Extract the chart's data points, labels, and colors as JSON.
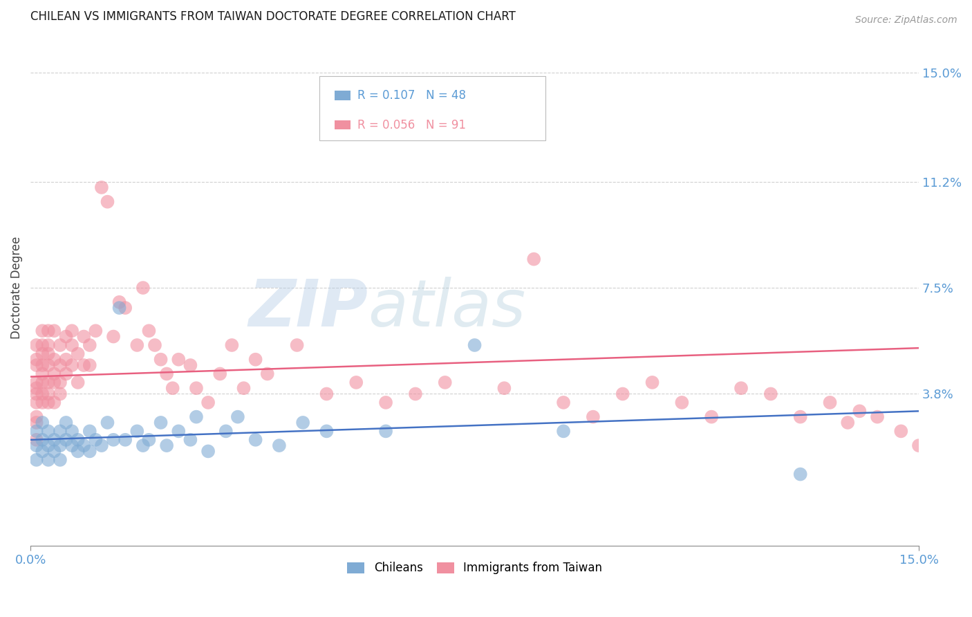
{
  "title": "CHILEAN VS IMMIGRANTS FROM TAIWAN DOCTORATE DEGREE CORRELATION CHART",
  "source": "Source: ZipAtlas.com",
  "ylabel": "Doctorate Degree",
  "ytick_labels": [
    "15.0%",
    "11.2%",
    "7.5%",
    "3.8%"
  ],
  "ytick_values": [
    0.15,
    0.112,
    0.075,
    0.038
  ],
  "xlim": [
    0.0,
    0.15
  ],
  "ylim": [
    -0.015,
    0.165
  ],
  "background_color": "#ffffff",
  "grid_color": "#d0d0d0",
  "legend_R1": "R = 0.107",
  "legend_N1": "N = 48",
  "legend_R2": "R = 0.056",
  "legend_N2": "N = 91",
  "chilean_color": "#7fabd4",
  "taiwan_color": "#f090a0",
  "line_blue": "#4472c4",
  "line_pink": "#e86080",
  "title_color": "#1a1a1a",
  "axis_label_color": "#5b9bd5",
  "watermark_zip": "ZIP",
  "watermark_atlas": "atlas",
  "chilean_x": [
    0.001,
    0.001,
    0.001,
    0.002,
    0.002,
    0.002,
    0.003,
    0.003,
    0.003,
    0.004,
    0.004,
    0.005,
    0.005,
    0.005,
    0.006,
    0.006,
    0.007,
    0.007,
    0.008,
    0.008,
    0.009,
    0.01,
    0.01,
    0.011,
    0.012,
    0.013,
    0.014,
    0.015,
    0.016,
    0.018,
    0.019,
    0.02,
    0.022,
    0.023,
    0.025,
    0.027,
    0.028,
    0.03,
    0.033,
    0.035,
    0.038,
    0.042,
    0.046,
    0.05,
    0.06,
    0.075,
    0.09,
    0.13
  ],
  "chilean_y": [
    0.02,
    0.015,
    0.025,
    0.018,
    0.022,
    0.028,
    0.015,
    0.025,
    0.02,
    0.022,
    0.018,
    0.025,
    0.02,
    0.015,
    0.022,
    0.028,
    0.02,
    0.025,
    0.018,
    0.022,
    0.02,
    0.025,
    0.018,
    0.022,
    0.02,
    0.028,
    0.022,
    0.068,
    0.022,
    0.025,
    0.02,
    0.022,
    0.028,
    0.02,
    0.025,
    0.022,
    0.03,
    0.018,
    0.025,
    0.03,
    0.022,
    0.02,
    0.028,
    0.025,
    0.025,
    0.055,
    0.025,
    0.01
  ],
  "taiwan_x": [
    0.001,
    0.001,
    0.001,
    0.001,
    0.001,
    0.001,
    0.001,
    0.001,
    0.001,
    0.001,
    0.002,
    0.002,
    0.002,
    0.002,
    0.002,
    0.002,
    0.002,
    0.002,
    0.003,
    0.003,
    0.003,
    0.003,
    0.003,
    0.003,
    0.003,
    0.004,
    0.004,
    0.004,
    0.004,
    0.004,
    0.005,
    0.005,
    0.005,
    0.005,
    0.006,
    0.006,
    0.006,
    0.007,
    0.007,
    0.007,
    0.008,
    0.008,
    0.009,
    0.009,
    0.01,
    0.01,
    0.011,
    0.012,
    0.013,
    0.014,
    0.015,
    0.016,
    0.018,
    0.019,
    0.02,
    0.021,
    0.022,
    0.023,
    0.024,
    0.025,
    0.027,
    0.028,
    0.03,
    0.032,
    0.034,
    0.036,
    0.038,
    0.04,
    0.045,
    0.05,
    0.055,
    0.06,
    0.065,
    0.07,
    0.08,
    0.085,
    0.09,
    0.095,
    0.1,
    0.105,
    0.11,
    0.115,
    0.12,
    0.125,
    0.13,
    0.135,
    0.138,
    0.14,
    0.143,
    0.147,
    0.15
  ],
  "taiwan_y": [
    0.04,
    0.035,
    0.03,
    0.05,
    0.048,
    0.038,
    0.055,
    0.042,
    0.028,
    0.022,
    0.045,
    0.038,
    0.052,
    0.042,
    0.035,
    0.055,
    0.06,
    0.048,
    0.06,
    0.052,
    0.042,
    0.035,
    0.055,
    0.048,
    0.038,
    0.06,
    0.05,
    0.042,
    0.035,
    0.045,
    0.055,
    0.048,
    0.038,
    0.042,
    0.05,
    0.058,
    0.045,
    0.055,
    0.048,
    0.06,
    0.052,
    0.042,
    0.058,
    0.048,
    0.055,
    0.048,
    0.06,
    0.11,
    0.105,
    0.058,
    0.07,
    0.068,
    0.055,
    0.075,
    0.06,
    0.055,
    0.05,
    0.045,
    0.04,
    0.05,
    0.048,
    0.04,
    0.035,
    0.045,
    0.055,
    0.04,
    0.05,
    0.045,
    0.055,
    0.038,
    0.042,
    0.035,
    0.038,
    0.042,
    0.04,
    0.085,
    0.035,
    0.03,
    0.038,
    0.042,
    0.035,
    0.03,
    0.04,
    0.038,
    0.03,
    0.035,
    0.028,
    0.032,
    0.03,
    0.025,
    0.02
  ]
}
